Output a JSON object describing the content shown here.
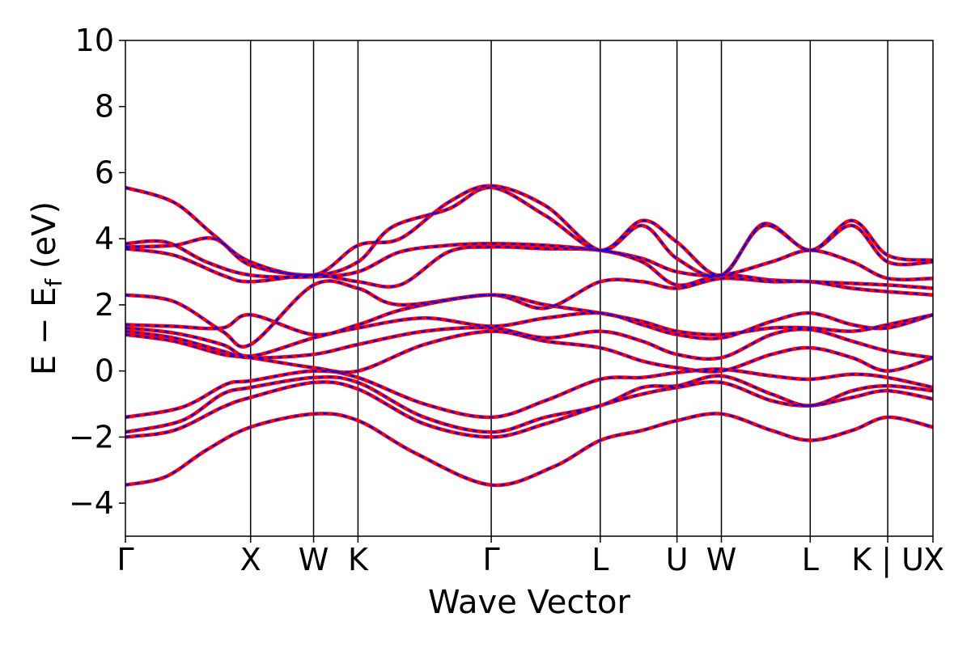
{
  "chart_data": {
    "type": "line",
    "xlabel": "Wave Vector",
    "ylabel": "E − E",
    "ylabel_sub": "f",
    "ylabel_unit": "(eV)",
    "ylim": [
      -5,
      10
    ],
    "yticks": [
      -4,
      -2,
      0,
      2,
      4,
      6,
      8,
      10
    ],
    "xlim": [
      0,
      10.0
    ],
    "kpoints": [
      {
        "label": "Γ",
        "x": 0.0
      },
      {
        "label": "X",
        "x": 1.55
      },
      {
        "label": "W",
        "x": 2.33
      },
      {
        "label": "K",
        "x": 2.88
      },
      {
        "label": "Γ",
        "x": 4.53
      },
      {
        "label": "L",
        "x": 5.88
      },
      {
        "label": "U",
        "x": 6.83
      },
      {
        "label": "W",
        "x": 7.38
      },
      {
        "label": "L",
        "x": 8.48
      },
      {
        "label": "K | U",
        "x": 9.44
      },
      {
        "label": "X",
        "x": 10.0
      }
    ],
    "vertical_lines_at": [
      1.55,
      2.33,
      2.88,
      4.53,
      5.88,
      6.83,
      7.38,
      8.48,
      9.44
    ],
    "series_style": [
      {
        "color": "#ff0000",
        "style": "solid"
      },
      {
        "color": "#0000ff",
        "style": "dashed"
      }
    ],
    "bands": [
      {
        "points": [
          [
            0,
            -3.45
          ],
          [
            0.5,
            -3.2
          ],
          [
            1.0,
            -2.4
          ],
          [
            1.55,
            -1.7
          ],
          [
            2.33,
            -1.3
          ],
          [
            2.88,
            -1.5
          ],
          [
            3.6,
            -2.5
          ],
          [
            4.53,
            -3.45
          ],
          [
            5.3,
            -2.9
          ],
          [
            5.88,
            -2.1
          ],
          [
            6.4,
            -1.8
          ],
          [
            6.83,
            -1.5
          ],
          [
            7.38,
            -1.3
          ],
          [
            8.0,
            -1.8
          ],
          [
            8.48,
            -2.1
          ],
          [
            9.0,
            -1.8
          ],
          [
            9.44,
            -1.4
          ],
          [
            10.0,
            -1.7
          ]
        ]
      },
      {
        "points": [
          [
            0,
            -2.0
          ],
          [
            0.6,
            -1.8
          ],
          [
            1.2,
            -1.1
          ],
          [
            1.55,
            -0.8
          ],
          [
            2.33,
            -0.35
          ],
          [
            2.88,
            -0.55
          ],
          [
            3.7,
            -1.6
          ],
          [
            4.53,
            -2.0
          ],
          [
            5.2,
            -1.6
          ],
          [
            5.88,
            -1.05
          ],
          [
            6.4,
            -0.7
          ],
          [
            6.83,
            -0.5
          ],
          [
            7.38,
            -0.35
          ],
          [
            8.0,
            -0.9
          ],
          [
            8.48,
            -1.05
          ],
          [
            9.0,
            -0.8
          ],
          [
            9.44,
            -0.6
          ],
          [
            10.0,
            -0.85
          ]
        ]
      },
      {
        "points": [
          [
            0,
            -1.85
          ],
          [
            0.7,
            -1.5
          ],
          [
            1.2,
            -0.7
          ],
          [
            1.55,
            -0.5
          ],
          [
            2.33,
            -0.2
          ],
          [
            2.88,
            -0.35
          ],
          [
            3.7,
            -1.4
          ],
          [
            4.53,
            -1.85
          ],
          [
            5.2,
            -1.4
          ],
          [
            5.88,
            -1.05
          ],
          [
            6.4,
            -0.5
          ],
          [
            6.83,
            -0.45
          ],
          [
            7.38,
            -0.15
          ],
          [
            8.0,
            -0.7
          ],
          [
            8.48,
            -1.05
          ],
          [
            9.0,
            -0.6
          ],
          [
            9.44,
            -0.45
          ],
          [
            10.0,
            -0.6
          ]
        ]
      },
      {
        "points": [
          [
            0,
            -1.4
          ],
          [
            0.7,
            -1.1
          ],
          [
            1.25,
            -0.4
          ],
          [
            1.55,
            -0.3
          ],
          [
            2.33,
            0.0
          ],
          [
            2.88,
            -0.2
          ],
          [
            3.7,
            -1.0
          ],
          [
            4.53,
            -1.4
          ],
          [
            5.2,
            -0.9
          ],
          [
            5.88,
            -0.25
          ],
          [
            6.4,
            -0.2
          ],
          [
            6.83,
            -0.05
          ],
          [
            7.38,
            0.05
          ],
          [
            8.0,
            -0.15
          ],
          [
            8.48,
            -0.25
          ],
          [
            9.0,
            -0.1
          ],
          [
            9.44,
            -0.2
          ],
          [
            10.0,
            -0.5
          ]
        ]
      },
      {
        "points": [
          [
            0,
            1.1
          ],
          [
            0.6,
            0.9
          ],
          [
            1.2,
            0.5
          ],
          [
            1.55,
            0.4
          ],
          [
            2.33,
            0.1
          ],
          [
            2.88,
            0.0
          ],
          [
            3.7,
            0.8
          ],
          [
            4.53,
            1.2
          ],
          [
            5.2,
            0.9
          ],
          [
            5.88,
            0.7
          ],
          [
            6.4,
            0.3
          ],
          [
            6.83,
            0.1
          ],
          [
            7.38,
            0.0
          ],
          [
            8.0,
            0.5
          ],
          [
            8.48,
            0.7
          ],
          [
            9.0,
            0.4
          ],
          [
            9.44,
            0.0
          ],
          [
            10.0,
            0.4
          ]
        ]
      },
      {
        "points": [
          [
            0,
            1.2
          ],
          [
            0.6,
            1.0
          ],
          [
            1.2,
            0.6
          ],
          [
            1.55,
            0.4
          ],
          [
            2.33,
            0.5
          ],
          [
            2.88,
            0.8
          ],
          [
            3.7,
            1.2
          ],
          [
            4.53,
            1.3
          ],
          [
            5.2,
            1.0
          ],
          [
            5.88,
            1.2
          ],
          [
            6.4,
            0.9
          ],
          [
            6.83,
            0.5
          ],
          [
            7.38,
            0.4
          ],
          [
            8.0,
            1.1
          ],
          [
            8.48,
            1.25
          ],
          [
            9.0,
            0.9
          ],
          [
            9.44,
            0.6
          ],
          [
            10.0,
            0.4
          ]
        ]
      },
      {
        "points": [
          [
            0,
            1.3
          ],
          [
            0.6,
            1.15
          ],
          [
            1.2,
            0.8
          ],
          [
            1.55,
            0.45
          ],
          [
            2.33,
            1.0
          ],
          [
            2.88,
            1.3
          ],
          [
            3.7,
            1.6
          ],
          [
            4.53,
            1.35
          ],
          [
            5.2,
            1.6
          ],
          [
            5.88,
            1.75
          ],
          [
            6.4,
            1.4
          ],
          [
            6.83,
            1.1
          ],
          [
            7.38,
            1.0
          ],
          [
            8.0,
            1.5
          ],
          [
            8.48,
            1.75
          ],
          [
            9.0,
            1.4
          ],
          [
            9.44,
            1.3
          ],
          [
            10.0,
            1.7
          ]
        ]
      },
      {
        "points": [
          [
            0,
            1.4
          ],
          [
            0.6,
            1.35
          ],
          [
            1.2,
            1.3
          ],
          [
            1.55,
            1.7
          ],
          [
            2.33,
            1.1
          ],
          [
            2.88,
            1.4
          ],
          [
            3.5,
            1.9
          ],
          [
            4.53,
            2.3
          ],
          [
            5.2,
            2.0
          ],
          [
            5.88,
            1.75
          ],
          [
            6.4,
            1.5
          ],
          [
            6.83,
            1.2
          ],
          [
            7.38,
            1.1
          ],
          [
            8.0,
            1.3
          ],
          [
            8.48,
            1.3
          ],
          [
            9.0,
            1.2
          ],
          [
            9.44,
            1.4
          ],
          [
            10.0,
            1.7
          ]
        ]
      },
      {
        "points": [
          [
            0,
            2.3
          ],
          [
            0.6,
            2.1
          ],
          [
            1.2,
            1.2
          ],
          [
            1.55,
            0.8
          ],
          [
            2.33,
            2.6
          ],
          [
            2.88,
            2.5
          ],
          [
            3.4,
            2.0
          ],
          [
            4.53,
            2.3
          ],
          [
            5.2,
            1.9
          ],
          [
            5.88,
            2.7
          ],
          [
            6.4,
            2.7
          ],
          [
            6.83,
            2.5
          ],
          [
            7.38,
            2.8
          ],
          [
            8.0,
            2.7
          ],
          [
            8.48,
            2.7
          ],
          [
            9.0,
            2.5
          ],
          [
            9.44,
            2.4
          ],
          [
            10.0,
            2.3
          ]
        ]
      },
      {
        "points": [
          [
            0,
            3.7
          ],
          [
            0.6,
            3.5
          ],
          [
            1.2,
            2.9
          ],
          [
            1.55,
            2.7
          ],
          [
            2.33,
            2.9
          ],
          [
            2.88,
            2.7
          ],
          [
            3.4,
            2.6
          ],
          [
            4.0,
            3.6
          ],
          [
            4.53,
            3.75
          ],
          [
            5.2,
            3.7
          ],
          [
            5.88,
            3.65
          ],
          [
            6.4,
            3.3
          ],
          [
            6.83,
            2.6
          ],
          [
            7.38,
            2.9
          ],
          [
            8.0,
            2.75
          ],
          [
            8.48,
            2.7
          ],
          [
            9.0,
            2.65
          ],
          [
            9.44,
            2.6
          ],
          [
            10.0,
            2.5
          ]
        ]
      },
      {
        "points": [
          [
            0,
            3.85
          ],
          [
            0.5,
            3.9
          ],
          [
            1.0,
            3.3
          ],
          [
            1.55,
            2.9
          ],
          [
            2.33,
            2.85
          ],
          [
            2.88,
            3.0
          ],
          [
            3.4,
            3.6
          ],
          [
            4.0,
            3.8
          ],
          [
            4.53,
            3.85
          ],
          [
            5.2,
            3.8
          ],
          [
            5.88,
            3.65
          ],
          [
            6.4,
            3.4
          ],
          [
            6.83,
            3.0
          ],
          [
            7.38,
            2.9
          ],
          [
            8.0,
            3.3
          ],
          [
            8.48,
            3.65
          ],
          [
            9.0,
            3.3
          ],
          [
            9.44,
            2.8
          ],
          [
            10.0,
            2.8
          ]
        ]
      },
      {
        "points": [
          [
            0,
            3.75
          ],
          [
            0.6,
            3.8
          ],
          [
            1.1,
            4.0
          ],
          [
            1.55,
            3.2
          ],
          [
            2.33,
            2.9
          ],
          [
            2.88,
            3.3
          ],
          [
            3.3,
            4.35
          ],
          [
            4.0,
            4.9
          ],
          [
            4.53,
            5.55
          ],
          [
            5.2,
            4.7
          ],
          [
            5.88,
            3.65
          ],
          [
            6.4,
            4.55
          ],
          [
            6.83,
            3.9
          ],
          [
            7.38,
            2.9
          ],
          [
            7.9,
            4.45
          ],
          [
            8.48,
            3.65
          ],
          [
            9.0,
            4.55
          ],
          [
            9.44,
            3.5
          ],
          [
            10.0,
            3.35
          ]
        ]
      },
      {
        "points": [
          [
            0,
            5.55
          ],
          [
            0.6,
            5.1
          ],
          [
            1.1,
            4.1
          ],
          [
            1.55,
            3.3
          ],
          [
            2.33,
            2.9
          ],
          [
            2.88,
            3.8
          ],
          [
            3.4,
            4.0
          ],
          [
            4.0,
            5.1
          ],
          [
            4.53,
            5.6
          ],
          [
            5.2,
            5.0
          ],
          [
            5.88,
            3.65
          ],
          [
            6.4,
            4.4
          ],
          [
            6.83,
            3.4
          ],
          [
            7.38,
            2.9
          ],
          [
            7.9,
            4.4
          ],
          [
            8.48,
            3.65
          ],
          [
            9.0,
            4.4
          ],
          [
            9.44,
            3.3
          ],
          [
            10.0,
            3.3
          ]
        ]
      }
    ]
  }
}
